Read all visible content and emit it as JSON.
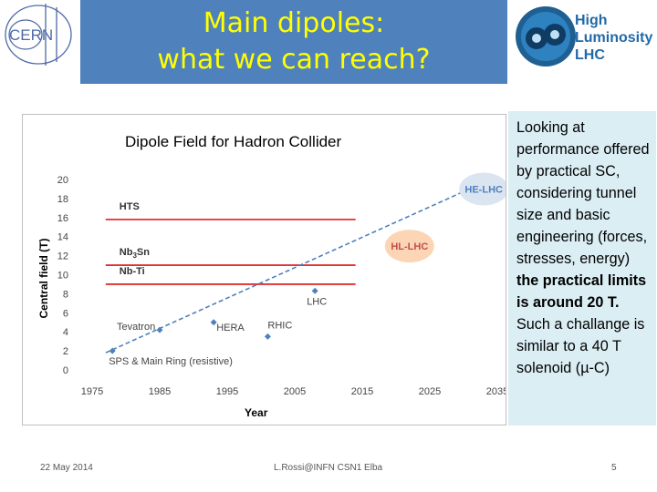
{
  "logos": {
    "cern": "CERN",
    "hilumi": [
      "High",
      "Luminosity",
      "LHC"
    ]
  },
  "title": {
    "line1": "Main dipoles:",
    "line2": "what we can reach?"
  },
  "side_text": {
    "part1": "Looking at performance offered by practical SC, considering tunnel size and basic engineering (forces, stresses, energy)",
    "bold": " the practical limits is around 20 T.",
    "part2": " Such a challange is similar to a 40 T solenoid (",
    "mu": "µ",
    "part3": "-C)"
  },
  "footer": {
    "date": "22 May 2014",
    "author": "L.Rossi@INFN CSN1 Elba",
    "page": "5"
  },
  "colors": {
    "title_bg": "#4f81bd",
    "title_text": "#ffff00",
    "side_bg": "#dbeef4",
    "limit_line": "#e03030",
    "trend_line": "#4f81bd",
    "hl_lhc_bubble": "#fcd5b5",
    "he_lhc_bubble": "#dbe5f1"
  },
  "chart_data": {
    "type": "scatter",
    "title": "Dipole Field for Hadron Collider",
    "xlabel": "Year",
    "ylabel": "Central field (T)",
    "xlim": [
      1975,
      2035
    ],
    "ylim": [
      0,
      20
    ],
    "xticks": [
      1975,
      1985,
      1995,
      2005,
      2015,
      2025,
      2035
    ],
    "yticks": [
      0,
      2,
      4,
      6,
      8,
      10,
      12,
      14,
      16,
      18,
      20
    ],
    "grid": false,
    "points": [
      {
        "x": 1978,
        "y": 2,
        "label": "SPS & Main Ring (resistive)"
      },
      {
        "x": 1985,
        "y": 4.2,
        "label": "Tevatron"
      },
      {
        "x": 1993,
        "y": 5,
        "label": "HERA"
      },
      {
        "x": 2001,
        "y": 3.5,
        "label": "RHIC"
      },
      {
        "x": 2008,
        "y": 8.3,
        "label": "LHC"
      }
    ],
    "highlights": [
      {
        "x": 2022,
        "y": 13,
        "label": "HL-LHC"
      },
      {
        "x": 2033,
        "y": 19,
        "label": "HE-LHC"
      }
    ],
    "trend_line": {
      "x": [
        1977,
        2034
      ],
      "y": [
        1.8,
        20
      ]
    },
    "limit_lines": [
      {
        "label": "HTS",
        "y": 15.8,
        "x": [
          1977,
          2014
        ]
      },
      {
        "label": "Nb3Sn",
        "y": 11,
        "x": [
          1977,
          2014
        ]
      },
      {
        "label": "Nb-Ti",
        "y": 9,
        "x": [
          1977,
          2014
        ]
      }
    ]
  }
}
